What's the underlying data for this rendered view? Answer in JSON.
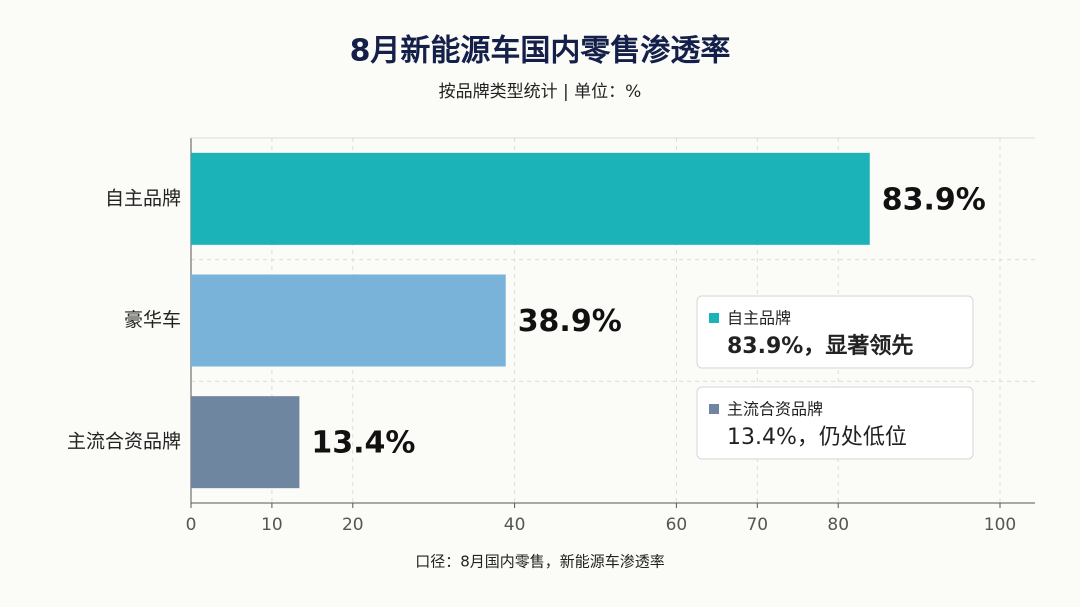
{
  "chart_data": {
    "type": "barh",
    "title": "8月新能源车国内零售渗透率",
    "subtitle": "按品牌类型统计 | 单位：%",
    "categories": [
      "自主品牌",
      "豪华车",
      "主流合资品牌"
    ],
    "values": [
      83.9,
      38.9,
      13.4
    ],
    "value_labels": [
      "83.9%",
      "38.9%",
      "13.4%"
    ],
    "colors": [
      "#1bb3b8",
      "#79b3da",
      "#6e86a0"
    ],
    "xlim": [
      0,
      100
    ],
    "xticks": [
      0,
      10,
      20,
      40,
      60,
      70,
      80,
      100
    ],
    "grid": true,
    "annotations": [
      {
        "label": "自主品牌",
        "text": "83.9%，显著领先",
        "color": "#1bb3b8"
      },
      {
        "label": "主流合资品牌",
        "text": "13.4%，仍处低位",
        "color": "#6e86a0"
      }
    ],
    "footnote": "口径：8月国内零售，新能源车渗透率"
  }
}
